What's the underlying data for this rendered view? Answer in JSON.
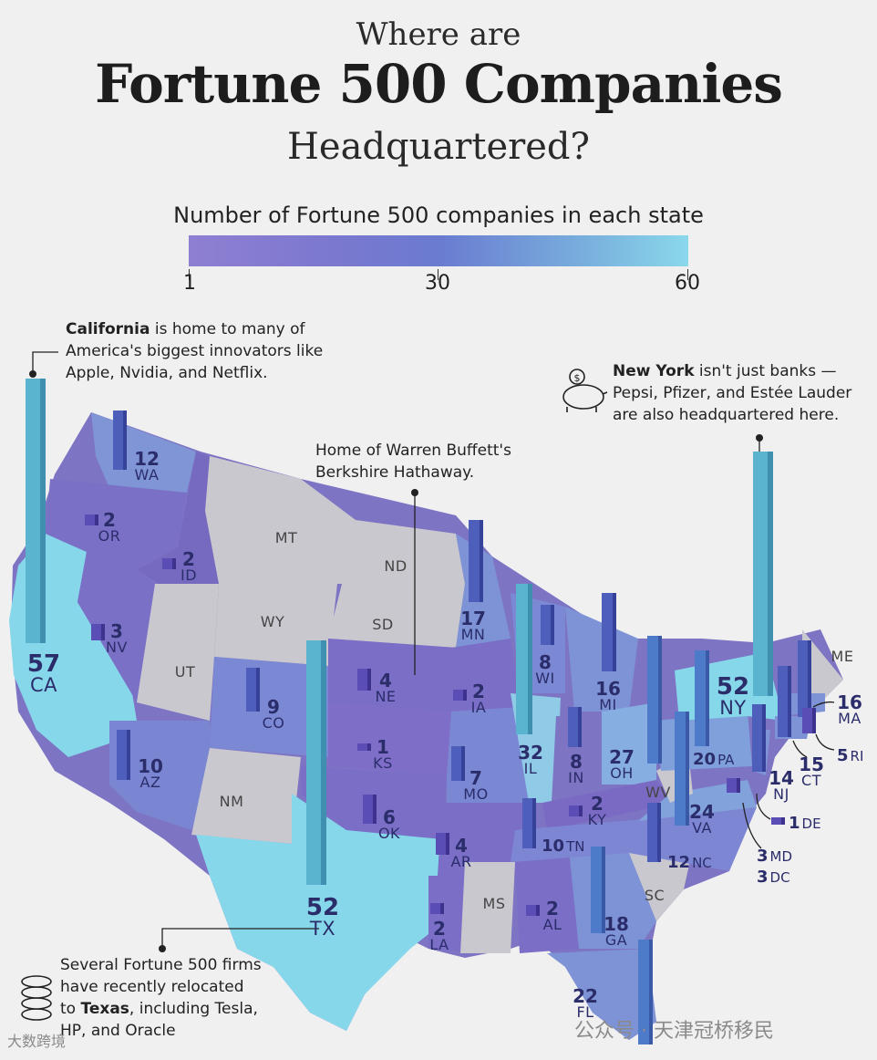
{
  "title": {
    "line1": "Where are",
    "line2": "Fortune 500 Companies",
    "line3": "Headquartered?"
  },
  "legend": {
    "title": "Number of Fortune 500 companies in each state",
    "min_label": "1",
    "mid_label": "30",
    "max_label": "60",
    "colors": [
      "#8f7fd2",
      "#6a7bd0",
      "#8ad8eb"
    ]
  },
  "annotations": {
    "california": {
      "bold": "California",
      "rest1": " is home to many of",
      "line2": "America's biggest innovators like",
      "line3": "Apple, Nvidia, and Netflix."
    },
    "nebraska": {
      "line1": "Home of Warren Buffett's",
      "line2": "Berkshire Hathaway."
    },
    "new_york": {
      "bold": "New York",
      "rest1": " isn't just banks —",
      "line2": "Pepsi, Pfizer, and Estée Lauder",
      "line3": "are also headquartered here."
    },
    "texas": {
      "line1": "Several Fortune 500 firms",
      "line2": "have recently relocated",
      "pre3": "to ",
      "bold3": "Texas",
      "rest3": ", including Tesla,",
      "line4": "HP, and Oracle"
    }
  },
  "icons": {
    "new_york": "piggy-bank-icon",
    "texas": "coin-stack-icon"
  },
  "states": [
    {
      "abbr": "CA",
      "count": "57"
    },
    {
      "abbr": "TX",
      "count": "52"
    },
    {
      "abbr": "NY",
      "count": "52"
    },
    {
      "abbr": "IL",
      "count": "32"
    },
    {
      "abbr": "OH",
      "count": "27"
    },
    {
      "abbr": "VA",
      "count": "24"
    },
    {
      "abbr": "FL",
      "count": "22"
    },
    {
      "abbr": "PA",
      "count": "20"
    },
    {
      "abbr": "GA",
      "count": "18"
    },
    {
      "abbr": "MN",
      "count": "17"
    },
    {
      "abbr": "MI",
      "count": "16"
    },
    {
      "abbr": "MA",
      "count": "16"
    },
    {
      "abbr": "CT",
      "count": "15"
    },
    {
      "abbr": "NJ",
      "count": "14"
    },
    {
      "abbr": "WA",
      "count": "12"
    },
    {
      "abbr": "NC",
      "count": "12"
    },
    {
      "abbr": "AZ",
      "count": "10"
    },
    {
      "abbr": "TN",
      "count": "10"
    },
    {
      "abbr": "CO",
      "count": "9"
    },
    {
      "abbr": "WI",
      "count": "8"
    },
    {
      "abbr": "IN",
      "count": "8"
    },
    {
      "abbr": "MO",
      "count": "7"
    },
    {
      "abbr": "OK",
      "count": "6"
    },
    {
      "abbr": "RI",
      "count": "5"
    },
    {
      "abbr": "NE",
      "count": "4"
    },
    {
      "abbr": "AR",
      "count": "4"
    },
    {
      "abbr": "NV",
      "count": "3"
    },
    {
      "abbr": "MD",
      "count": "3"
    },
    {
      "abbr": "DC",
      "count": "3"
    },
    {
      "abbr": "OR",
      "count": "2"
    },
    {
      "abbr": "ID",
      "count": "2"
    },
    {
      "abbr": "IA",
      "count": "2"
    },
    {
      "abbr": "KY",
      "count": "2"
    },
    {
      "abbr": "LA",
      "count": "2"
    },
    {
      "abbr": "AL",
      "count": "2"
    },
    {
      "abbr": "KS",
      "count": "1"
    },
    {
      "abbr": "DE",
      "count": "1"
    }
  ],
  "no_hq_states": [
    "MT",
    "ND",
    "WY",
    "SD",
    "UT",
    "NM",
    "WV",
    "SC",
    "MS",
    "ME"
  ],
  "watermarks": {
    "bottom_left": "大数跨境",
    "bottom_right": "公众号 · 天津冠桥移民"
  }
}
